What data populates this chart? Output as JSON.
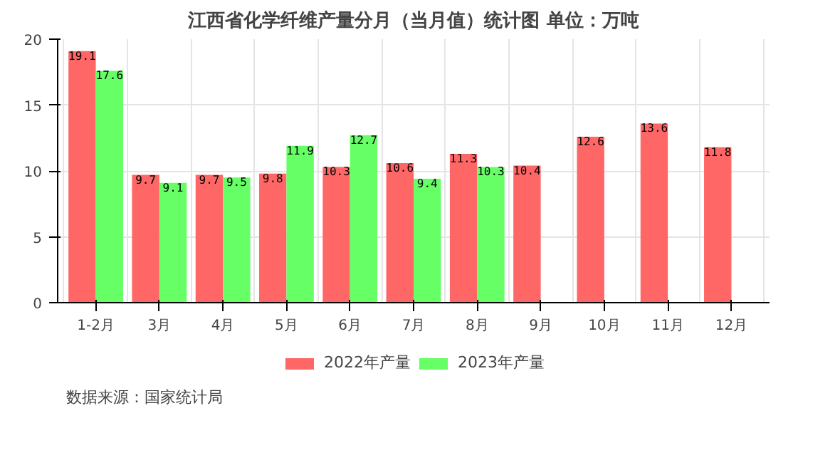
{
  "chart_data": {
    "type": "bar",
    "title": "江西省化学纤维产量分月（当月值）统计图 单位：万吨",
    "categories": [
      "1-2月",
      "3月",
      "4月",
      "5月",
      "6月",
      "7月",
      "8月",
      "9月",
      "10月",
      "11月",
      "12月"
    ],
    "series": [
      {
        "name": "2022年产量",
        "color": "#ff6666",
        "values": [
          19.1,
          9.7,
          9.7,
          9.8,
          10.3,
          10.6,
          11.3,
          10.4,
          12.6,
          13.6,
          11.8
        ]
      },
      {
        "name": "2023年产量",
        "color": "#66ff66",
        "values": [
          17.6,
          9.1,
          9.5,
          11.9,
          12.7,
          9.4,
          10.3,
          null,
          null,
          null,
          null
        ]
      }
    ],
    "ylim": [
      0,
      20
    ],
    "yticks": [
      0,
      5,
      10,
      15,
      20
    ],
    "grid": true,
    "legend": "bottom",
    "data_labels": true,
    "annotations": [
      "数据来源：国家统计局"
    ]
  }
}
